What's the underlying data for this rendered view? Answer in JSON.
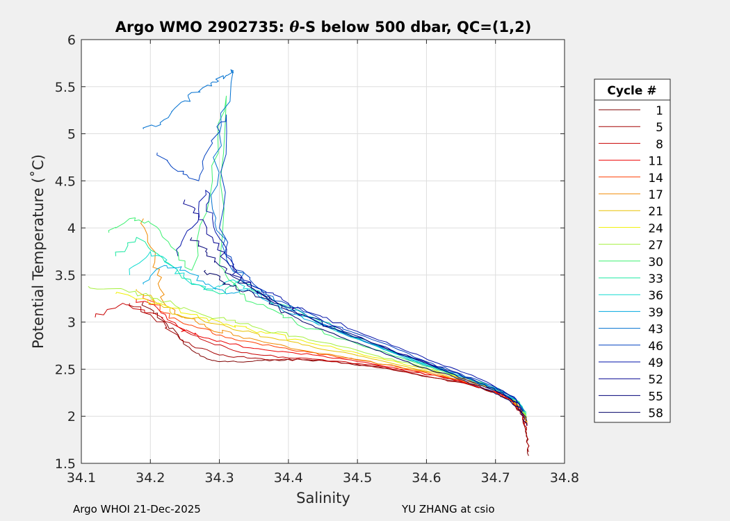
{
  "chart_data": {
    "type": "line",
    "title_prefix": "Argo WMO 2902735: ",
    "title_theta": "θ",
    "title_suffix": "-S below 500 dbar,  QC=(1,2)",
    "xlabel": "Salinity",
    "ylabel": "Potential Temperature (˚C)",
    "xlim": [
      34.1,
      34.8
    ],
    "ylim": [
      1.5,
      6
    ],
    "xticks": [
      "34.1",
      "34.2",
      "34.3",
      "34.4",
      "34.5",
      "34.6",
      "34.7",
      "34.8"
    ],
    "yticks": [
      "1.5",
      "2",
      "2.5",
      "3",
      "3.5",
      "4",
      "4.5",
      "5",
      "5.5",
      "6"
    ],
    "grid": true,
    "legend": {
      "title": "Cycle #",
      "placement": "right-outside",
      "entries": [
        {
          "label": "1",
          "color": "#7f0000"
        },
        {
          "label": "5",
          "color": "#a30000"
        },
        {
          "label": "8",
          "color": "#c80000"
        },
        {
          "label": "11",
          "color": "#ed0000"
        },
        {
          "label": "14",
          "color": "#ff3d00"
        },
        {
          "label": "17",
          "color": "#f08a00"
        },
        {
          "label": "21",
          "color": "#e8c200"
        },
        {
          "label": "24",
          "color": "#f0f000"
        },
        {
          "label": "27",
          "color": "#a6f040"
        },
        {
          "label": "30",
          "color": "#3cf070"
        },
        {
          "label": "33",
          "color": "#18e8a0"
        },
        {
          "label": "36",
          "color": "#10dcd0"
        },
        {
          "label": "39",
          "color": "#00a8e0"
        },
        {
          "label": "43",
          "color": "#0070d0"
        },
        {
          "label": "46",
          "color": "#0040c0"
        },
        {
          "label": "49",
          "color": "#0010a8"
        },
        {
          "label": "52",
          "color": "#000090"
        },
        {
          "label": "55",
          "color": "#000078"
        },
        {
          "label": "58",
          "color": "#000066"
        }
      ]
    },
    "series": [
      {
        "color": "#7f0000",
        "x": [
          34.19,
          34.21,
          34.24,
          34.26,
          34.28,
          34.3,
          34.34,
          34.38,
          34.42,
          34.47,
          34.52,
          34.57,
          34.62,
          34.66,
          34.7,
          34.725,
          34.74,
          34.745,
          34.748
        ],
        "y": [
          3.22,
          3.05,
          2.85,
          2.7,
          2.62,
          2.58,
          2.58,
          2.6,
          2.6,
          2.58,
          2.53,
          2.47,
          2.4,
          2.34,
          2.25,
          2.15,
          2.0,
          1.8,
          1.58
        ]
      },
      {
        "color": "#a30000",
        "x": [
          34.17,
          34.2,
          34.23,
          34.26,
          34.3,
          34.34,
          34.38,
          34.42,
          34.47,
          34.52,
          34.57,
          34.62,
          34.66,
          34.7,
          34.725,
          34.74,
          34.745,
          34.748
        ],
        "y": [
          3.2,
          3.08,
          2.9,
          2.75,
          2.65,
          2.62,
          2.6,
          2.6,
          2.58,
          2.53,
          2.47,
          2.4,
          2.34,
          2.25,
          2.15,
          2.0,
          1.82,
          1.62
        ]
      },
      {
        "color": "#c80000",
        "x": [
          34.12,
          34.16,
          34.2,
          34.24,
          34.28,
          34.32,
          34.36,
          34.4,
          34.45,
          34.5,
          34.56,
          34.62,
          34.66,
          34.7,
          34.725,
          34.74,
          34.745
        ],
        "y": [
          3.05,
          3.2,
          3.1,
          2.95,
          2.8,
          2.7,
          2.65,
          2.62,
          2.6,
          2.56,
          2.5,
          2.42,
          2.35,
          2.26,
          2.16,
          2.02,
          1.85
        ]
      },
      {
        "color": "#ed0000",
        "x": [
          34.18,
          34.21,
          34.24,
          34.27,
          34.31,
          34.35,
          34.4,
          34.45,
          34.5,
          34.56,
          34.62,
          34.66,
          34.7,
          34.725,
          34.74,
          34.746
        ],
        "y": [
          3.25,
          3.15,
          2.95,
          2.85,
          2.78,
          2.72,
          2.68,
          2.64,
          2.58,
          2.5,
          2.42,
          2.35,
          2.26,
          2.17,
          2.02,
          1.9
        ]
      },
      {
        "color": "#ff3d00",
        "x": [
          34.19,
          34.22,
          34.25,
          34.29,
          34.33,
          34.38,
          34.43,
          34.48,
          34.54,
          34.6,
          34.65,
          34.69,
          34.72,
          34.74,
          34.745
        ],
        "y": [
          3.3,
          3.1,
          2.98,
          2.88,
          2.8,
          2.74,
          2.68,
          2.62,
          2.55,
          2.46,
          2.38,
          2.28,
          2.18,
          2.04,
          1.92
        ]
      },
      {
        "color": "#f08a00",
        "x": [
          34.19,
          34.2,
          34.21,
          34.22,
          34.25,
          34.28,
          34.32,
          34.37,
          34.42,
          34.48,
          34.54,
          34.6,
          34.65,
          34.69,
          34.72,
          34.74,
          34.746
        ],
        "y": [
          4.1,
          3.8,
          3.5,
          3.2,
          3.05,
          2.95,
          2.86,
          2.78,
          2.7,
          2.63,
          2.55,
          2.47,
          2.39,
          2.3,
          2.2,
          2.06,
          1.92
        ]
      },
      {
        "color": "#e8c200",
        "x": [
          34.18,
          34.21,
          34.24,
          34.28,
          34.32,
          34.37,
          34.42,
          34.48,
          34.54,
          34.6,
          34.65,
          34.69,
          34.72,
          34.74,
          34.746
        ],
        "y": [
          3.35,
          3.2,
          3.08,
          3.0,
          2.92,
          2.84,
          2.76,
          2.68,
          2.58,
          2.48,
          2.4,
          2.31,
          2.21,
          2.07,
          1.94
        ]
      },
      {
        "color": "#f0f000",
        "x": [
          34.15,
          34.19,
          34.23,
          34.27,
          34.31,
          34.36,
          34.41,
          34.47,
          34.53,
          34.59,
          34.64,
          34.68,
          34.715,
          34.735,
          34.745
        ],
        "y": [
          3.3,
          3.25,
          3.15,
          3.05,
          2.98,
          2.9,
          2.82,
          2.72,
          2.62,
          2.52,
          2.43,
          2.34,
          2.24,
          2.1,
          1.96
        ]
      },
      {
        "color": "#a6f040",
        "x": [
          34.11,
          34.16,
          34.21,
          34.26,
          34.31,
          34.36,
          34.41,
          34.47,
          34.53,
          34.59,
          34.64,
          34.68,
          34.715,
          34.735,
          34.745
        ],
        "y": [
          3.38,
          3.35,
          3.25,
          3.12,
          3.02,
          2.93,
          2.85,
          2.75,
          2.64,
          2.53,
          2.44,
          2.35,
          2.25,
          2.12,
          1.98
        ]
      },
      {
        "color": "#3cf070",
        "x": [
          34.14,
          34.17,
          34.2,
          34.23,
          34.26,
          34.29,
          34.31,
          34.3,
          34.33,
          34.37,
          34.41,
          34.46,
          34.52,
          34.58,
          34.63,
          34.68,
          34.71,
          34.735,
          34.744
        ],
        "y": [
          3.95,
          4.1,
          4.05,
          3.8,
          3.55,
          4.5,
          5.4,
          3.6,
          3.3,
          3.15,
          3.0,
          2.86,
          2.72,
          2.58,
          2.46,
          2.36,
          2.26,
          2.14,
          2.0
        ]
      },
      {
        "color": "#18e8a0",
        "x": [
          34.15,
          34.18,
          34.22,
          34.26,
          34.3,
          34.33,
          34.37,
          34.42,
          34.47,
          34.53,
          34.58,
          34.63,
          34.67,
          34.71,
          34.735,
          34.744
        ],
        "y": [
          3.7,
          3.9,
          3.65,
          3.4,
          3.3,
          3.45,
          3.25,
          3.1,
          2.92,
          2.75,
          2.6,
          2.48,
          2.38,
          2.27,
          2.15,
          2.02
        ]
      },
      {
        "color": "#10dcd0",
        "x": [
          34.17,
          34.2,
          34.23,
          34.26,
          34.29,
          34.32,
          34.36,
          34.4,
          34.45,
          34.5,
          34.56,
          34.61,
          34.66,
          34.7,
          34.73,
          34.743
        ],
        "y": [
          3.5,
          3.75,
          3.6,
          3.4,
          3.35,
          3.45,
          3.3,
          3.15,
          2.98,
          2.82,
          2.66,
          2.52,
          2.4,
          2.28,
          2.17,
          2.04
        ]
      },
      {
        "color": "#00a8e0",
        "x": [
          34.19,
          34.22,
          34.25,
          34.28,
          34.31,
          34.34,
          34.37,
          34.41,
          34.46,
          34.51,
          34.56,
          34.61,
          34.66,
          34.7,
          34.73,
          34.742
        ],
        "y": [
          3.4,
          3.6,
          3.55,
          3.4,
          3.3,
          3.35,
          3.22,
          3.08,
          2.95,
          2.8,
          2.65,
          2.52,
          2.4,
          2.29,
          2.17,
          2.05
        ]
      },
      {
        "color": "#0070d0",
        "x": [
          34.19,
          34.22,
          34.25,
          34.27,
          34.29,
          34.31,
          34.32,
          34.3,
          34.29,
          34.31,
          34.34,
          34.38,
          34.43,
          34.48,
          34.54,
          34.6,
          34.65,
          34.7,
          34.73,
          34.742
        ],
        "y": [
          5.05,
          5.15,
          5.35,
          5.45,
          5.55,
          5.62,
          5.67,
          5.0,
          4.2,
          3.7,
          3.4,
          3.22,
          3.05,
          2.88,
          2.72,
          2.56,
          2.43,
          2.3,
          2.18,
          2.05
        ]
      },
      {
        "color": "#0040c0",
        "x": [
          34.21,
          34.24,
          34.27,
          34.29,
          34.31,
          34.3,
          34.32,
          34.35,
          34.39,
          34.44,
          34.49,
          34.55,
          34.6,
          34.65,
          34.7,
          34.73,
          34.74
        ],
        "y": [
          4.8,
          4.6,
          4.5,
          4.9,
          5.2,
          4.0,
          3.6,
          3.4,
          3.22,
          3.06,
          2.9,
          2.74,
          2.58,
          2.45,
          2.31,
          2.18,
          2.06
        ]
      },
      {
        "color": "#0010a8",
        "x": [
          34.24,
          34.26,
          34.28,
          34.29,
          34.31,
          34.33,
          34.36,
          34.4,
          34.45,
          34.5,
          34.56,
          34.61,
          34.66,
          34.7,
          34.73,
          34.74
        ],
        "y": [
          3.7,
          4.0,
          4.4,
          4.1,
          3.7,
          3.5,
          3.35,
          3.2,
          3.05,
          2.9,
          2.73,
          2.58,
          2.45,
          2.31,
          2.18,
          2.05
        ]
      },
      {
        "color": "#000090",
        "x": [
          34.25,
          34.27,
          34.29,
          34.31,
          34.33,
          34.36,
          34.39,
          34.43,
          34.48,
          34.53,
          34.58,
          34.63,
          34.67,
          34.71,
          34.735
        ],
        "y": [
          4.3,
          4.15,
          3.9,
          3.65,
          3.45,
          3.3,
          3.18,
          3.05,
          2.9,
          2.76,
          2.62,
          2.49,
          2.38,
          2.25,
          2.12
        ]
      },
      {
        "color": "#000078",
        "x": [
          34.26,
          34.28,
          34.3,
          34.32,
          34.35,
          34.38,
          34.42,
          34.47,
          34.52,
          34.57,
          34.62,
          34.66,
          34.7,
          34.73,
          34.745
        ],
        "y": [
          3.9,
          3.75,
          3.6,
          3.48,
          3.35,
          3.22,
          3.08,
          2.92,
          2.78,
          2.64,
          2.5,
          2.38,
          2.27,
          2.15,
          1.95
        ]
      },
      {
        "color": "#000066",
        "x": [
          34.28,
          34.3,
          34.32,
          34.35,
          34.38,
          34.41,
          34.45,
          34.5,
          34.55,
          34.6,
          34.65,
          34.69,
          34.72,
          34.738,
          34.745
        ],
        "y": [
          3.55,
          3.45,
          3.38,
          3.3,
          3.18,
          3.05,
          2.92,
          2.78,
          2.64,
          2.51,
          2.39,
          2.28,
          2.17,
          2.05,
          1.9
        ]
      }
    ]
  },
  "footer": {
    "left": "Argo WHOI 21-Dec-2025",
    "right": "YU ZHANG at csio"
  }
}
